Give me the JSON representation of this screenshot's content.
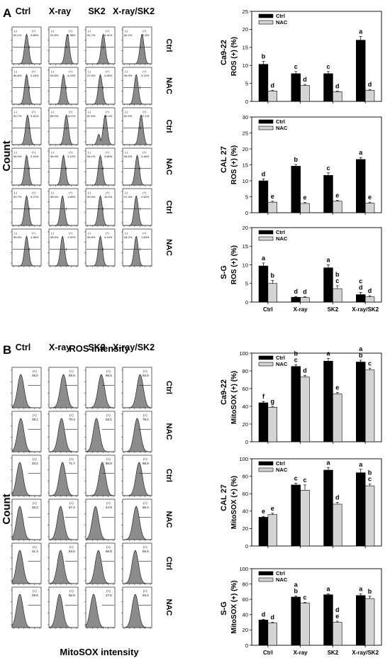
{
  "panels": [
    {
      "letter": "A",
      "xlabel": "ROS intensity",
      "ylabel": "Count",
      "col_headers": [
        "Ctrl",
        "X-ray",
        "SK2",
        "X-ray/SK2"
      ],
      "row_labels": [
        "Ctrl",
        "NAC",
        "Ctrl",
        "NAC",
        "Ctrl",
        "NAC"
      ],
      "histograms": [
        {
          "pct": [
            [
              "90.1%",
              "9.86%"
            ],
            [
              "91.6%",
              "8.38%"
            ],
            [
              "91.7%",
              "8.31%"
            ],
            [
              "82.2%",
              "17.8%"
            ]
          ]
        },
        {
          "pct": [
            [
              "96.8%",
              "3.18%"
            ],
            [
              "95.8%",
              "4.23%"
            ],
            [
              "97.5%",
              "2.55%"
            ],
            [
              "96.9%",
              "3.12%"
            ]
          ]
        },
        {
          "pct": [
            [
              "90.7%",
              "9.31%"
            ],
            [
              "85.9%",
              "14.1%"
            ],
            [
              "87.6%",
              "12.4%"
            ],
            [
              "82.9%",
              "17.1%"
            ]
          ]
        },
        {
          "pct": [
            [
              "96.9%",
              "3.15%"
            ],
            [
              "96.9%",
              "3.12%"
            ],
            [
              "96.1%",
              "3.86%"
            ],
            [
              "96.5%",
              "3.46%"
            ]
          ]
        },
        {
          "pct": [
            [
              "90.7%",
              "9.27%"
            ],
            [
              "98.4%",
              "1.55%"
            ],
            [
              "90.0%",
              "10.0%"
            ],
            [
              "97.4%",
              "2.62%"
            ]
          ]
        },
        {
          "pct": [
            [
              "95.6%",
              "4.36%"
            ],
            [
              "98.5%",
              "1.52%"
            ],
            [
              "95.8%",
              "4.24%"
            ],
            [
              "98.2%",
              "1.83%"
            ]
          ]
        }
      ]
    },
    {
      "letter": "B",
      "xlabel": "MitoSOX intensity",
      "ylabel": "Count",
      "col_headers": [
        "Ctrl",
        "X-ray",
        "SK2",
        "X-ray/SK2"
      ],
      "row_labels": [
        "Ctrl",
        "NAC",
        "Ctrl",
        "NAC",
        "Ctrl",
        "NAC"
      ],
      "histograms": [
        {
          "pct": [
            [
              "45.0"
            ],
            [
              "85.5"
            ],
            [
              "86.6"
            ],
            [
              "92.8"
            ]
          ]
        },
        {
          "pct": [
            [
              "39.1"
            ],
            [
              "70.3"
            ],
            [
              "53.1"
            ],
            [
              "78.2"
            ]
          ]
        },
        {
          "pct": [
            [
              "33.1"
            ],
            [
              "71.7"
            ],
            [
              "88.9"
            ],
            [
              "86.8"
            ]
          ]
        },
        {
          "pct": [
            [
              "33.2"
            ],
            [
              "57.4"
            ],
            [
              "44.9"
            ],
            [
              "66.4"
            ]
          ]
        },
        {
          "pct": [
            [
              "31.4"
            ],
            [
              "63.6"
            ],
            [
              "65.8"
            ],
            [
              "65.5"
            ]
          ]
        },
        {
          "pct": [
            [
              "29.5"
            ],
            [
              "52.9"
            ],
            [
              "27.6"
            ],
            [
              "63.4"
            ]
          ]
        }
      ]
    }
  ],
  "histogram_gate_labels": [
    "(-)",
    "(+)"
  ],
  "chart_data": [
    {
      "type": "bar",
      "cell_line": "Ca9-22",
      "ylabel": "ROS (+) (%)",
      "ylim": [
        0,
        25
      ],
      "yticks": [
        0,
        5,
        10,
        15,
        20,
        25
      ],
      "categories": [
        "Ctrl",
        "X-ray",
        "SK2",
        "X-ray/SK2"
      ],
      "show_categories": false,
      "legend": "top-left",
      "series": [
        {
          "name": "Ctrl",
          "color": "#000000",
          "values": [
            10.3,
            7.7,
            7.7,
            17.0
          ],
          "errors": [
            0.8,
            0.6,
            0.6,
            1.0
          ],
          "letters": [
            "b",
            "c",
            "c",
            "a"
          ]
        },
        {
          "name": "NAC",
          "color": "#d4d4d4",
          "values": [
            2.9,
            4.4,
            2.7,
            3.1
          ],
          "errors": [
            0.2,
            0.3,
            0.2,
            0.2
          ],
          "letters": [
            "d",
            "d",
            "d",
            "d"
          ]
        }
      ]
    },
    {
      "type": "bar",
      "cell_line": "CAL 27",
      "ylabel": "ROS (+) (%)",
      "ylim": [
        0,
        30
      ],
      "yticks": [
        0,
        5,
        10,
        15,
        20,
        25,
        30
      ],
      "categories": [
        "Ctrl",
        "X-ray",
        "SK2",
        "X-ray/SK2"
      ],
      "show_categories": false,
      "legend": "top-left",
      "series": [
        {
          "name": "Ctrl",
          "color": "#000000",
          "values": [
            10.0,
            14.6,
            11.7,
            16.7
          ],
          "errors": [
            0.6,
            0.5,
            0.8,
            0.6
          ],
          "letters": [
            "d",
            "b",
            "c",
            "a"
          ]
        },
        {
          "name": "NAC",
          "color": "#d4d4d4",
          "values": [
            3.3,
            2.9,
            3.6,
            3.0
          ],
          "errors": [
            0.3,
            0.3,
            0.3,
            0.3
          ],
          "letters": [
            "e",
            "e",
            "e",
            "e"
          ]
        }
      ]
    },
    {
      "type": "bar",
      "cell_line": "S-G",
      "ylabel": "ROS (+) (%)",
      "ylim": [
        0,
        20
      ],
      "yticks": [
        0,
        5,
        10,
        15,
        20
      ],
      "categories": [
        "Ctrl",
        "X-ray",
        "SK2",
        "X-ray/SK2"
      ],
      "show_categories": true,
      "legend": "top-left",
      "series": [
        {
          "name": "Ctrl",
          "color": "#000000",
          "values": [
            9.7,
            1.3,
            9.2,
            2.0
          ],
          "errors": [
            0.8,
            0.2,
            0.8,
            0.6
          ],
          "letters": [
            "a",
            "d",
            "a",
            "c d"
          ]
        },
        {
          "name": "NAC",
          "color": "#d4d4d4",
          "values": [
            5.0,
            1.2,
            3.6,
            1.4
          ],
          "errors": [
            0.8,
            0.2,
            0.8,
            0.3
          ],
          "letters": [
            "b",
            "d",
            "b c",
            "d"
          ]
        }
      ]
    },
    {
      "type": "bar",
      "cell_line": "Ca9-22",
      "ylabel": "MitoSOX (+) (%)",
      "ylim": [
        0,
        100
      ],
      "yticks": [
        0,
        20,
        40,
        60,
        80,
        100
      ],
      "categories": [
        "Ctrl",
        "X-ray",
        "SK2",
        "X-ray/SK2"
      ],
      "show_categories": false,
      "legend": "top-left",
      "series": [
        {
          "name": "Ctrl",
          "color": "#000000",
          "values": [
            44,
            85,
            91,
            90
          ],
          "errors": [
            1.5,
            2,
            3,
            2
          ],
          "letters": [
            "f",
            "b c",
            "a",
            "a b"
          ]
        },
        {
          "name": "NAC",
          "color": "#d4d4d4",
          "values": [
            39,
            73,
            54,
            81
          ],
          "errors": [
            1,
            2,
            1.5,
            2
          ],
          "letters": [
            "g",
            "d",
            "e",
            "c"
          ]
        }
      ]
    },
    {
      "type": "bar",
      "cell_line": "CAL 27",
      "ylabel": "MitoSOX (+) (%)",
      "ylim": [
        0,
        100
      ],
      "yticks": [
        0,
        20,
        40,
        60,
        80,
        100
      ],
      "categories": [
        "Ctrl",
        "X-ray",
        "SK2",
        "X-ray/SK2"
      ],
      "show_categories": false,
      "legend": "top-left",
      "series": [
        {
          "name": "Ctrl",
          "color": "#000000",
          "values": [
            33,
            70,
            87,
            84
          ],
          "errors": [
            1,
            2,
            3,
            4
          ],
          "letters": [
            "e",
            "c",
            "a",
            "a"
          ]
        },
        {
          "name": "NAC",
          "color": "#d4d4d4",
          "values": [
            36,
            64,
            48,
            69
          ],
          "errors": [
            1.5,
            6,
            2,
            2
          ],
          "letters": [
            "e",
            "c",
            "d",
            "b c"
          ]
        }
      ]
    },
    {
      "type": "bar",
      "cell_line": "S-G",
      "ylabel": "MitoSOX (+) (%)",
      "ylim": [
        0,
        100
      ],
      "yticks": [
        0,
        20,
        40,
        60,
        80,
        100
      ],
      "categories": [
        "Ctrl",
        "X-ray",
        "SK2",
        "X-ray/SK2"
      ],
      "show_categories": true,
      "legend": "top-left",
      "series": [
        {
          "name": "Ctrl",
          "color": "#000000",
          "values": [
            33,
            63,
            66,
            65
          ],
          "errors": [
            1,
            1.5,
            1,
            2
          ],
          "letters": [
            "d",
            "a b",
            "a",
            "a"
          ]
        },
        {
          "name": "NAC",
          "color": "#d4d4d4",
          "values": [
            29,
            55,
            30,
            61
          ],
          "errors": [
            1,
            1,
            1.5,
            3
          ],
          "letters": [
            "d",
            "c",
            "d e",
            "b"
          ]
        }
      ]
    }
  ]
}
